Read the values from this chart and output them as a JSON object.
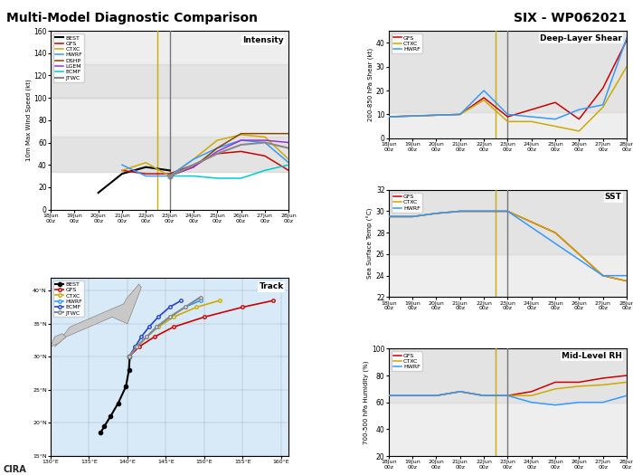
{
  "title_left": "Multi-Model Diagnostic Comparison",
  "title_right": "SIX - WP062021",
  "time_labels": [
    "18Jun\n00z",
    "19Jun\n00z",
    "20Jun\n00z",
    "21Jun\n00z",
    "22Jun\n00z",
    "23Jun\n00z",
    "24Jun\n00z",
    "25Jun\n00z",
    "26Jun\n00z",
    "27Jun\n00z",
    "28Jun\n00z"
  ],
  "time_x": [
    0,
    1,
    2,
    3,
    4,
    5,
    6,
    7,
    8,
    9,
    10
  ],
  "vline_yellow": 4.5,
  "vline_gray": 5.0,
  "intensity": {
    "title": "Intensity",
    "ylabel": "10m Max Wind Speed (kt)",
    "ylim": [
      0,
      160
    ],
    "yticks": [
      0,
      20,
      40,
      60,
      80,
      100,
      120,
      140,
      160
    ],
    "BEST": [
      null,
      null,
      15,
      32,
      38,
      35,
      null,
      null,
      null,
      null,
      null
    ],
    "GFS": [
      null,
      null,
      null,
      35,
      32,
      32,
      40,
      50,
      52,
      48,
      35
    ],
    "CTXC": [
      null,
      null,
      null,
      35,
      42,
      30,
      45,
      62,
      67,
      65,
      45
    ],
    "HWRF": [
      null,
      null,
      null,
      40,
      30,
      30,
      45,
      55,
      62,
      60,
      42
    ],
    "DSHP": [
      null,
      null,
      null,
      null,
      null,
      30,
      38,
      55,
      68,
      68,
      68
    ],
    "LGEM": [
      null,
      null,
      null,
      null,
      null,
      30,
      38,
      52,
      62,
      62,
      60
    ],
    "ECMF": [
      null,
      null,
      null,
      null,
      null,
      30,
      30,
      28,
      28,
      35,
      40
    ],
    "JTWC": [
      null,
      null,
      null,
      null,
      null,
      30,
      40,
      50,
      58,
      60,
      55
    ],
    "colors": {
      "BEST": "#000000",
      "GFS": "#cc0000",
      "CTXC": "#ccaa00",
      "HWRF": "#3399ff",
      "DSHP": "#884400",
      "LGEM": "#9933cc",
      "ECMF": "#00cccc",
      "JTWC": "#888888"
    }
  },
  "shear": {
    "title": "Deep-Layer Shear",
    "ylabel": "200-850 hPa Shear (kt)",
    "ylim": [
      0,
      45
    ],
    "yticks": [
      0,
      10,
      20,
      30,
      40
    ],
    "GFS": [
      9,
      null,
      null,
      10,
      17,
      9,
      12,
      15,
      8,
      21,
      41
    ],
    "CTXC": [
      9,
      null,
      null,
      10,
      16,
      7,
      7,
      5,
      3,
      13,
      30
    ],
    "HWRF": [
      9,
      null,
      null,
      10,
      20,
      10,
      9,
      8,
      12,
      14,
      42
    ],
    "colors": {
      "GFS": "#cc0000",
      "CTXC": "#ccaa00",
      "HWRF": "#3399ff"
    }
  },
  "sst": {
    "title": "SST",
    "ylabel": "Sea Surface Temp (°C)",
    "ylim": [
      22,
      32
    ],
    "yticks": [
      22,
      24,
      26,
      28,
      30,
      32
    ],
    "GFS": [
      29.5,
      29.5,
      29.8,
      30.0,
      30.0,
      30.0,
      29.0,
      28.0,
      26.0,
      24.0,
      23.5
    ],
    "CTXC": [
      29.5,
      29.5,
      29.8,
      30.0,
      30.0,
      30.0,
      29.0,
      28.0,
      26.0,
      24.0,
      23.5
    ],
    "HWRF": [
      29.5,
      29.5,
      29.8,
      30.0,
      30.0,
      30.0,
      28.5,
      27.0,
      25.5,
      24.0,
      24.0
    ],
    "colors": {
      "GFS": "#cc0000",
      "CTXC": "#ccaa00",
      "HWRF": "#3399ff"
    }
  },
  "rh": {
    "title": "Mid-Level RH",
    "ylabel": "700-500 hPa Humidity (%)",
    "ylim": [
      20,
      100
    ],
    "yticks": [
      20,
      40,
      60,
      80,
      100
    ],
    "GFS": [
      65,
      65,
      65,
      68,
      65,
      65,
      68,
      75,
      75,
      78,
      80
    ],
    "CTXC": [
      65,
      65,
      65,
      68,
      65,
      65,
      65,
      70,
      72,
      73,
      75
    ],
    "HWRF": [
      65,
      65,
      65,
      68,
      65,
      65,
      60,
      58,
      60,
      60,
      65
    ],
    "colors": {
      "GFS": "#cc0000",
      "CTXC": "#ccaa00",
      "HWRF": "#3399ff"
    }
  },
  "track": {
    "map_extent": [
      130,
      161,
      15,
      42
    ],
    "lon_ticks": [
      130,
      135,
      140,
      145,
      150,
      155,
      160
    ],
    "lat_ticks": [
      15,
      20,
      25,
      30,
      35,
      40
    ],
    "BEST_lon": [
      136.5,
      137.0,
      137.8,
      138.8,
      139.8,
      140.2,
      140.3
    ],
    "BEST_lat": [
      18.5,
      19.5,
      21.0,
      23.0,
      25.5,
      28.0,
      30.0
    ],
    "GFS_lon": [
      140.2,
      141.5,
      143.5,
      146.0,
      150.0,
      155.0,
      159.0
    ],
    "GFS_lat": [
      30.0,
      31.5,
      33.0,
      34.5,
      36.0,
      37.5,
      38.5
    ],
    "CTXC_lon": [
      140.2,
      141.2,
      142.5,
      144.0,
      146.0,
      149.0,
      152.0
    ],
    "CTXC_lat": [
      30.0,
      31.5,
      33.0,
      34.5,
      36.0,
      37.5,
      38.5
    ],
    "HWRF_lon": [
      140.2,
      141.2,
      142.5,
      143.8,
      145.5,
      147.5,
      149.5
    ],
    "HWRF_lat": [
      30.0,
      31.5,
      33.0,
      34.5,
      36.0,
      37.5,
      38.5
    ],
    "ECMF_lon": [
      140.2,
      141.0,
      141.8,
      142.8,
      144.0,
      145.5,
      147.0
    ],
    "ECMF_lat": [
      30.0,
      31.5,
      33.0,
      34.5,
      36.0,
      37.5,
      38.5
    ],
    "JTWC_lon": [
      140.2,
      141.2,
      142.5,
      143.8,
      145.5,
      147.5,
      149.5
    ],
    "JTWC_lat": [
      30.0,
      31.5,
      33.0,
      34.5,
      36.0,
      37.5,
      39.0
    ],
    "colors": {
      "BEST": "#000000",
      "GFS": "#cc0000",
      "CTXC": "#ccaa00",
      "HWRF": "#3399ff",
      "ECMF": "#2244cc",
      "JTWC": "#888888"
    },
    "japan_honshu_lon": [
      130.5,
      131.0,
      132.0,
      133.0,
      134.0,
      135.0,
      136.0,
      137.0,
      138.0,
      139.0,
      140.0,
      141.0,
      141.5,
      141.8,
      141.5,
      140.8,
      140.0,
      139.5,
      138.5,
      137.5,
      136.5,
      135.5,
      134.5,
      133.5,
      132.5,
      131.5,
      130.5
    ],
    "japan_honshu_lat": [
      31.5,
      32.0,
      33.0,
      33.5,
      34.0,
      34.5,
      35.0,
      35.5,
      36.0,
      35.5,
      35.0,
      38.0,
      39.5,
      40.5,
      41.0,
      40.0,
      39.0,
      38.0,
      37.5,
      37.0,
      36.5,
      36.0,
      35.5,
      35.0,
      34.5,
      33.0,
      31.5
    ],
    "kyushu_lon": [
      130.0,
      130.5,
      131.0,
      131.5,
      132.0,
      131.5,
      130.5,
      130.0
    ],
    "kyushu_lat": [
      31.5,
      31.8,
      32.0,
      32.5,
      33.0,
      33.5,
      33.0,
      31.5
    ],
    "korea_lon": [
      126.0,
      127.0,
      128.0,
      129.0,
      129.5,
      129.0,
      128.0,
      127.0,
      126.5,
      126.0,
      125.5,
      126.0
    ],
    "korea_lat": [
      34.5,
      35.0,
      35.5,
      36.0,
      37.5,
      38.5,
      39.5,
      40.5,
      39.0,
      37.0,
      35.5,
      34.5
    ],
    "china_coast_lon": [
      120.0,
      121.0,
      122.0,
      122.5,
      122.0,
      121.5,
      121.0,
      120.5,
      120.0,
      119.5,
      119.0,
      118.5,
      118.0,
      117.5
    ],
    "china_coast_lat": [
      30.0,
      30.5,
      31.0,
      31.8,
      32.5,
      33.0,
      31.5,
      30.5,
      29.5,
      28.5,
      27.5,
      26.5,
      25.5,
      24.5
    ],
    "taiwan_lon": [
      121.0,
      121.5,
      121.8,
      121.5,
      121.0,
      120.5,
      120.0,
      120.5,
      121.0
    ],
    "taiwan_lat": [
      25.0,
      25.5,
      24.0,
      22.5,
      22.0,
      22.5,
      23.5,
      24.5,
      25.0
    ]
  },
  "footer": "CIRA"
}
